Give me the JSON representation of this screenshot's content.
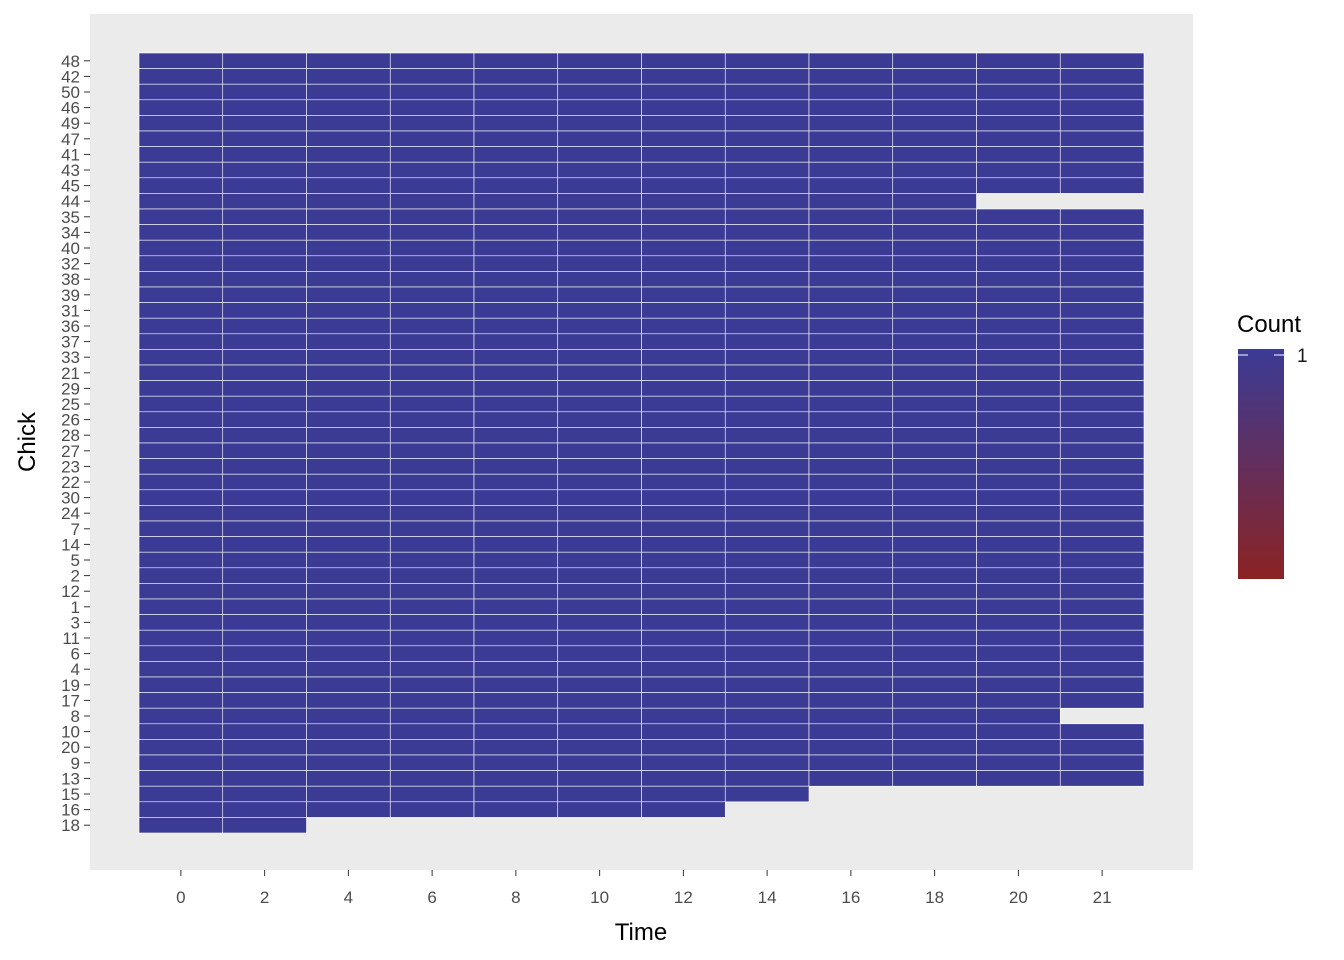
{
  "chart_data": {
    "type": "heatmap",
    "xlabel": "Time",
    "ylabel": "Chick",
    "x_categories": [
      "0",
      "2",
      "4",
      "6",
      "8",
      "10",
      "12",
      "14",
      "16",
      "18",
      "20",
      "21"
    ],
    "y_categories": [
      "48",
      "42",
      "50",
      "46",
      "49",
      "47",
      "41",
      "43",
      "45",
      "44",
      "35",
      "34",
      "40",
      "32",
      "38",
      "39",
      "31",
      "36",
      "37",
      "33",
      "21",
      "29",
      "25",
      "26",
      "28",
      "27",
      "23",
      "22",
      "30",
      "24",
      "7",
      "14",
      "5",
      "2",
      "12",
      "1",
      "3",
      "11",
      "6",
      "4",
      "19",
      "17",
      "8",
      "10",
      "20",
      "9",
      "13",
      "15",
      "16",
      "18"
    ],
    "observed_time_points": {
      "44": 10,
      "8": 11,
      "15": 8,
      "16": 7,
      "18": 2
    },
    "default_time_points": 12,
    "value": 1,
    "legend": {
      "title": "Count",
      "labels": [
        "1"
      ],
      "position": "right",
      "gradient_low": "#8b2323",
      "gradient_high": "#3b3b96"
    },
    "colors": {
      "fill": "#3b3b96",
      "cell_border": "#ffffff",
      "panel_background": "#ebebeb"
    }
  }
}
